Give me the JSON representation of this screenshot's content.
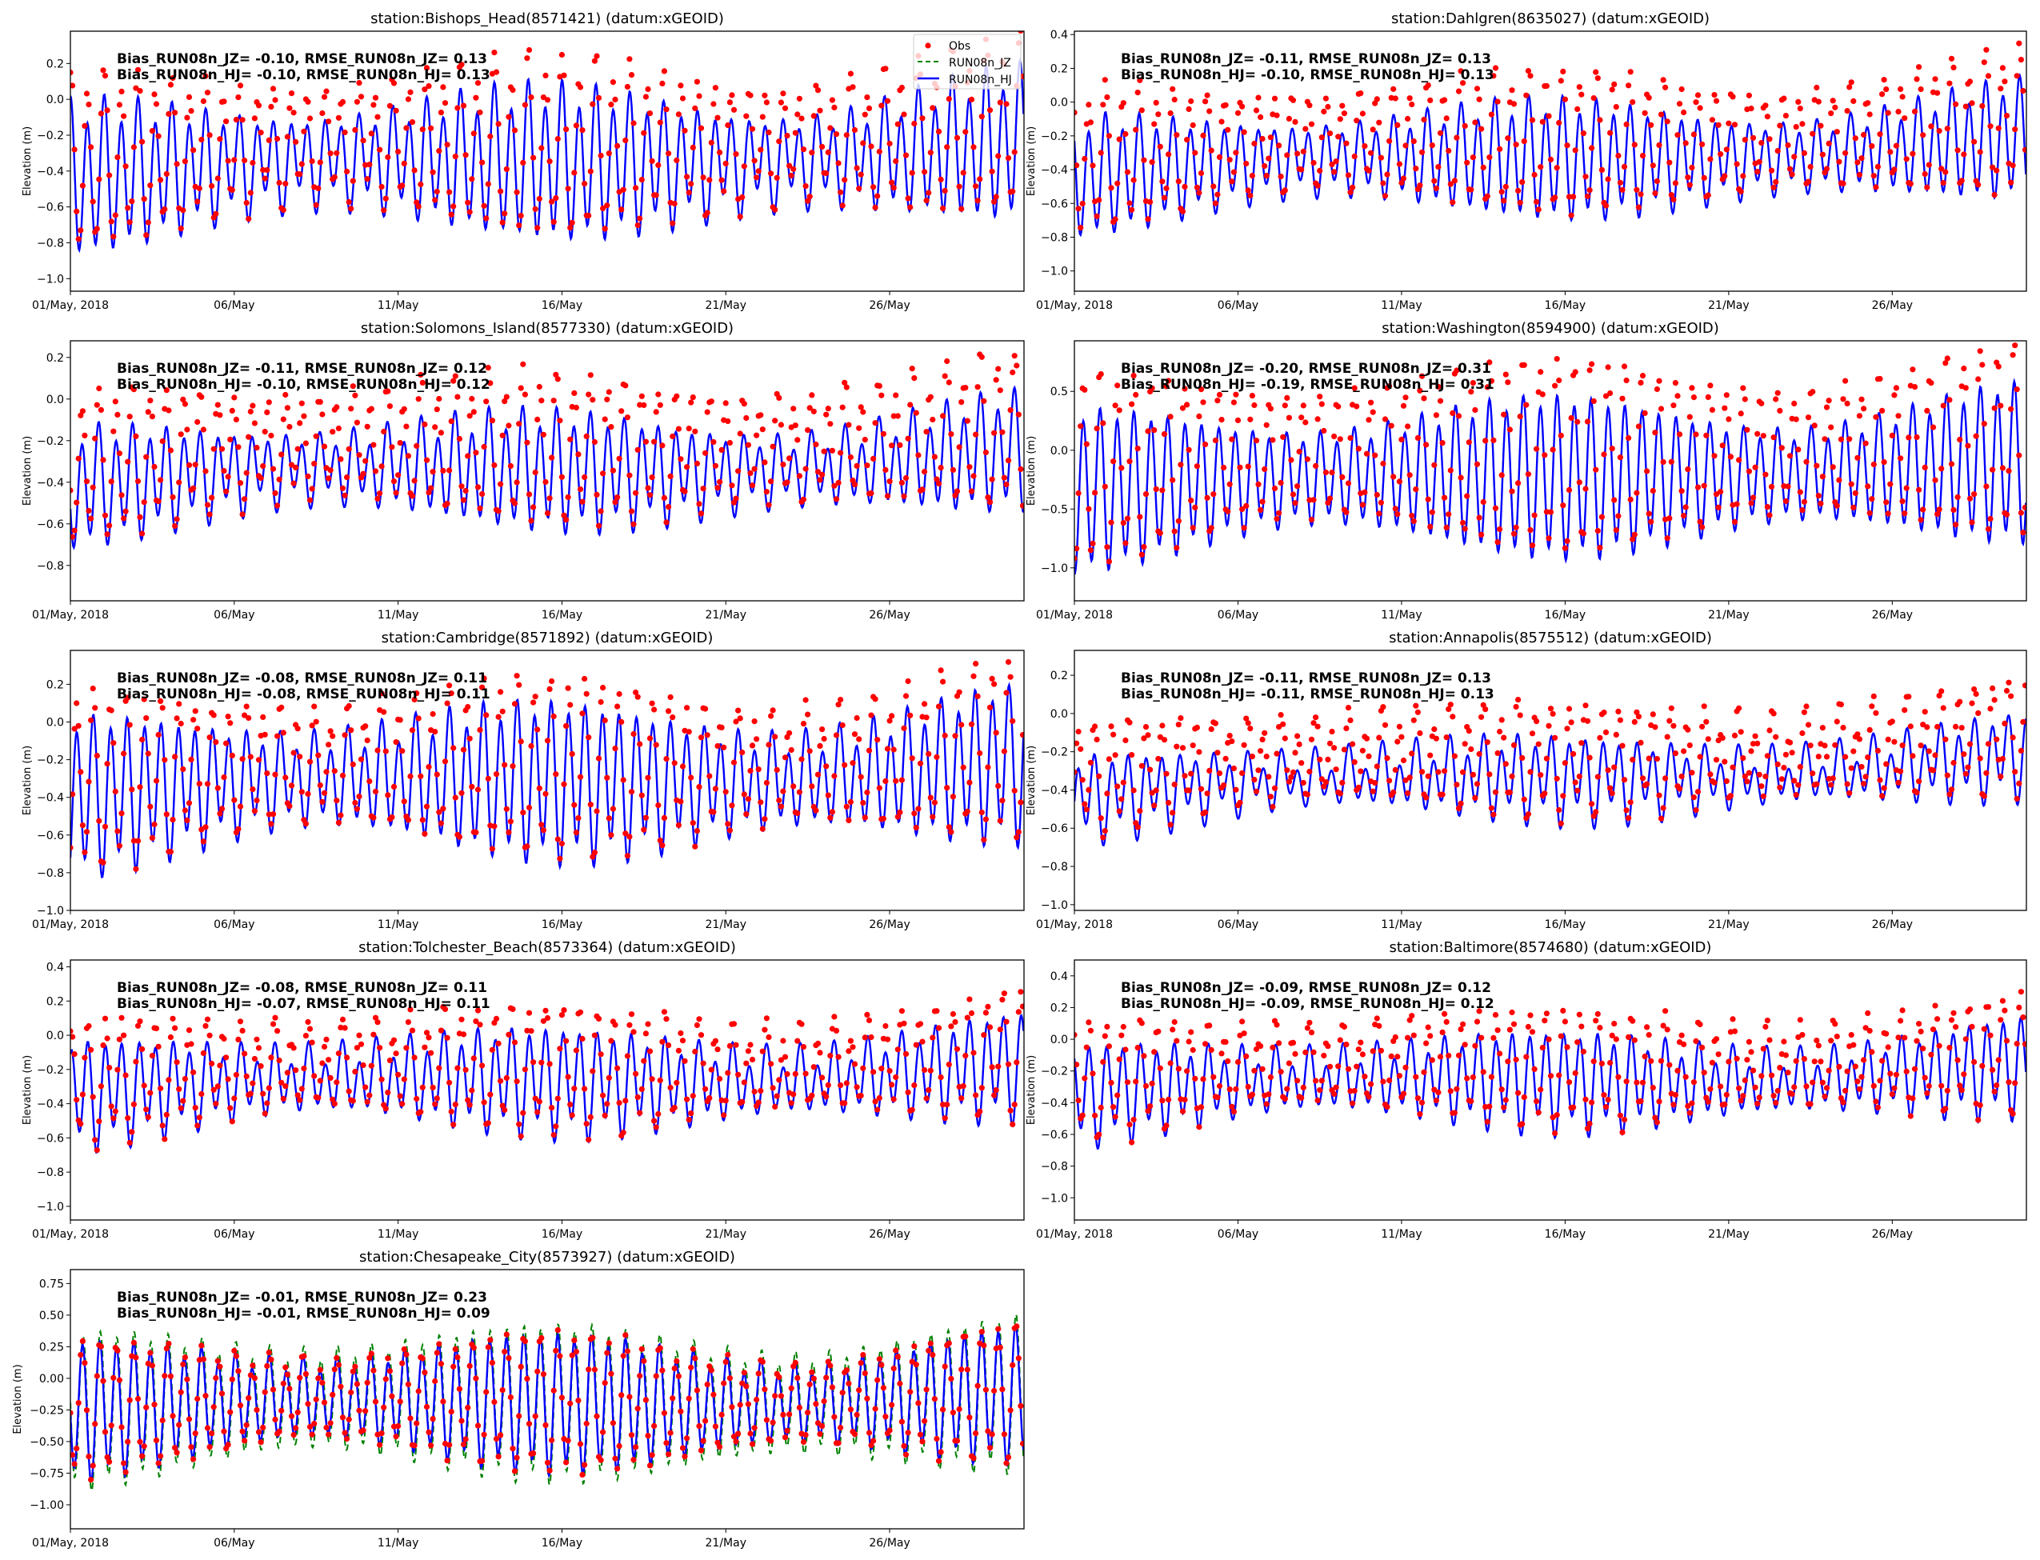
{
  "chart_data": [
    {
      "type": "line",
      "title": "station:Bishops_Head(8571421) (datum:xGEOID)",
      "ylabel": "Elevation (m)",
      "ylim": [
        -1.07,
        0.38
      ],
      "yticks": [
        0.2,
        0.0,
        -0.2,
        -0.4,
        -0.6,
        -0.8,
        -1.0
      ],
      "ytick_labels": [
        "0.2",
        "0.0",
        "−0.2",
        "−0.4",
        "−0.6",
        "−0.8",
        "−1.0"
      ],
      "stats": [
        "Bias_RUN08n_JZ= -0.10, RMSE_RUN08n_JZ=  0.13",
        "Bias_RUN08n_HJ= -0.10, RMSE_RUN08n_HJ=  0.13"
      ],
      "signal": {
        "mean": [
          -0.45,
          -0.25
        ],
        "m2": 0.3,
        "k1": 0.08,
        "obs_bias": 0.1,
        "jz_diff": 0
      }
    },
    {
      "type": "line",
      "title": "station:Dahlgren(8635027) (datum:xGEOID)",
      "ylabel": "Elevation (m)",
      "ylim": [
        -1.12,
        0.42
      ],
      "yticks": [
        0.4,
        0.2,
        0.0,
        -0.2,
        -0.4,
        -0.6,
        -0.8,
        -1.0
      ],
      "ytick_labels": [
        "0.4",
        "0.2",
        "0.0",
        "−0.2",
        "−0.4",
        "−0.6",
        "−0.8",
        "−1.0"
      ],
      "stats": [
        "Bias_RUN08n_JZ= -0.11, RMSE_RUN08n_JZ=  0.13",
        "Bias_RUN08n_HJ= -0.10, RMSE_RUN08n_HJ=  0.13"
      ],
      "signal": {
        "mean": [
          -0.45,
          -0.22
        ],
        "m2": 0.25,
        "k1": 0.06,
        "obs_bias": 0.11,
        "jz_diff": 0
      }
    },
    {
      "type": "line",
      "title": "station:Solomons_Island(8577330) (datum:xGEOID)",
      "ylabel": "Elevation (m)",
      "ylim": [
        -0.97,
        0.28
      ],
      "yticks": [
        0.2,
        0.0,
        -0.2,
        -0.4,
        -0.6,
        -0.8
      ],
      "ytick_labels": [
        "0.2",
        "0.0",
        "−0.2",
        "−0.4",
        "−0.6",
        "−0.8"
      ],
      "stats": [
        "Bias_RUN08n_JZ= -0.11, RMSE_RUN08n_JZ=  0.12",
        "Bias_RUN08n_HJ= -0.10, RMSE_RUN08n_HJ=  0.12"
      ],
      "signal": {
        "mean": [
          -0.43,
          -0.25
        ],
        "m2": 0.2,
        "k1": 0.06,
        "obs_bias": 0.11,
        "jz_diff": 0
      }
    },
    {
      "type": "line",
      "title": "station:Washington(8594900) (datum:xGEOID)",
      "ylabel": "Elevation (m)",
      "ylim": [
        -1.28,
        0.93
      ],
      "yticks": [
        0.5,
        0.0,
        -0.5,
        -1.0
      ],
      "ytick_labels": [
        "0.5",
        "0.0",
        "−0.5",
        "−1.0"
      ],
      "stats": [
        "Bias_RUN08n_JZ= -0.20, RMSE_RUN08n_JZ=  0.31",
        "Bias_RUN08n_HJ= -0.19, RMSE_RUN08n_HJ=  0.31"
      ],
      "signal": {
        "mean": [
          -0.35,
          -0.1
        ],
        "m2": 0.5,
        "k1": 0.07,
        "obs_bias": 0.2,
        "jz_diff": 0
      }
    },
    {
      "type": "line",
      "title": "station:Cambridge(8571892) (datum:xGEOID)",
      "ylabel": "Elevation (m)",
      "ylim": [
        -1.0,
        0.38
      ],
      "yticks": [
        0.2,
        0.0,
        -0.2,
        -0.4,
        -0.6,
        -0.8,
        -1.0
      ],
      "ytick_labels": [
        "0.2",
        "0.0",
        "−0.2",
        "−0.4",
        "−0.6",
        "−0.8",
        "−1.0"
      ],
      "stats": [
        "Bias_RUN08n_JZ= -0.08, RMSE_RUN08n_JZ=  0.11",
        "Bias_RUN08n_HJ= -0.08, RMSE_RUN08n_HJ=  0.11"
      ],
      "signal": {
        "mean": [
          -0.4,
          -0.22
        ],
        "m2": 0.3,
        "k1": 0.07,
        "obs_bias": 0.08,
        "jz_diff": 0
      }
    },
    {
      "type": "line",
      "title": "station:Annapolis(8575512) (datum:xGEOID)",
      "ylabel": "Elevation (m)",
      "ylim": [
        -1.03,
        0.33
      ],
      "yticks": [
        0.2,
        0.0,
        -0.2,
        -0.4,
        -0.6,
        -0.8,
        -1.0
      ],
      "ytick_labels": [
        "0.2",
        "0.0",
        "−0.2",
        "−0.4",
        "−0.6",
        "−0.8",
        "−1.0"
      ],
      "stats": [
        "Bias_RUN08n_JZ= -0.11, RMSE_RUN08n_JZ=  0.13",
        "Bias_RUN08n_HJ= -0.11, RMSE_RUN08n_HJ=  0.13"
      ],
      "signal": {
        "mean": [
          -0.45,
          -0.22
        ],
        "m2": 0.15,
        "k1": 0.07,
        "obs_bias": 0.11,
        "jz_diff": 0
      }
    },
    {
      "type": "line",
      "title": "station:Tolchester_Beach(8573364) (datum:xGEOID)",
      "ylabel": "Elevation (m)",
      "ylim": [
        -1.08,
        0.44
      ],
      "yticks": [
        0.4,
        0.2,
        0.0,
        -0.2,
        -0.4,
        -0.6,
        -0.8,
        -1.0
      ],
      "ytick_labels": [
        "0.4",
        "0.2",
        "0.0",
        "−0.2",
        "−0.4",
        "−0.6",
        "−0.8",
        "−1.0"
      ],
      "stats": [
        "Bias_RUN08n_JZ= -0.08, RMSE_RUN08n_JZ=  0.11",
        "Bias_RUN08n_HJ= -0.07, RMSE_RUN08n_HJ=  0.11"
      ],
      "signal": {
        "mean": [
          -0.35,
          -0.18
        ],
        "m2": 0.22,
        "k1": 0.07,
        "obs_bias": 0.08,
        "jz_diff": 0
      }
    },
    {
      "type": "line",
      "title": "station:Baltimore(8574680) (datum:xGEOID)",
      "ylabel": "Elevation (m)",
      "ylim": [
        -1.14,
        0.5
      ],
      "yticks": [
        0.4,
        0.2,
        0.0,
        -0.2,
        -0.4,
        -0.6,
        -0.8,
        -1.0
      ],
      "ytick_labels": [
        "0.4",
        "0.2",
        "0.0",
        "−0.2",
        "−0.4",
        "−0.6",
        "−0.8",
        "−1.0"
      ],
      "stats": [
        "Bias_RUN08n_JZ= -0.09, RMSE_RUN08n_JZ=  0.12",
        "Bias_RUN08n_HJ= -0.09, RMSE_RUN08n_HJ=  0.12"
      ],
      "signal": {
        "mean": [
          -0.35,
          -0.17
        ],
        "m2": 0.22,
        "k1": 0.07,
        "obs_bias": 0.09,
        "jz_diff": 0
      }
    },
    {
      "type": "line",
      "title": "station:Chesapeake_City(8573927) (datum:xGEOID)",
      "ylabel": "Elevation (m)",
      "ylim": [
        -1.19,
        0.86
      ],
      "yticks": [
        0.75,
        0.5,
        0.25,
        0.0,
        -0.25,
        -0.5,
        -0.75,
        -1.0
      ],
      "ytick_labels": [
        "0.75",
        "0.50",
        "0.25",
        "0.00",
        "−0.25",
        "−0.50",
        "−0.75",
        "−1.00"
      ],
      "stats": [
        "Bias_RUN08n_JZ= -0.01, RMSE_RUN08n_JZ=  0.23",
        "Bias_RUN08n_HJ= -0.01, RMSE_RUN08n_HJ=  0.09"
      ],
      "signal": {
        "mean": [
          -0.25,
          -0.12
        ],
        "m2": 0.4,
        "k1": 0.06,
        "obs_bias": 0.01,
        "jz_diff": 0.12
      }
    }
  ],
  "xaxis": {
    "range_days": [
      0,
      29.1
    ],
    "ticks_days": [
      0,
      5,
      10,
      15,
      20,
      25
    ],
    "tick_labels": [
      "01/May, 2018",
      "06/May",
      "11/May",
      "16/May",
      "21/May",
      "26/May"
    ]
  },
  "legend": {
    "placement": "top-right",
    "entries": [
      "Obs",
      "RUN08n_JZ",
      "RUN08n_HJ"
    ]
  },
  "colors": {
    "obs": "#ff0000",
    "jz": "#008000",
    "hj": "#0000ff"
  }
}
